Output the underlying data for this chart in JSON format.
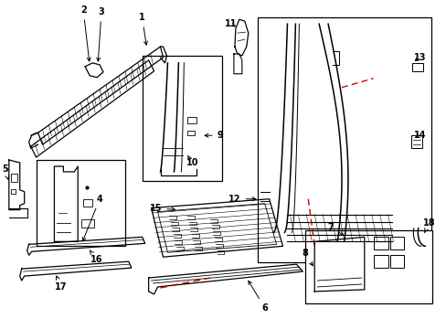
{
  "background_color": "#ffffff",
  "line_color": "#000000",
  "red_dash_color": "#cc0000",
  "label_positions": {
    "1": [
      148,
      22,
      155,
      14
    ],
    "2": [
      98,
      18,
      90,
      10
    ],
    "3": [
      115,
      20,
      108,
      12
    ],
    "4": [
      108,
      210,
      108,
      218
    ],
    "5": [
      12,
      185,
      4,
      185
    ],
    "6": [
      290,
      330,
      290,
      340
    ],
    "7": [
      355,
      256,
      363,
      248
    ],
    "8": [
      343,
      278,
      335,
      278
    ],
    "9": [
      233,
      145,
      241,
      145
    ],
    "10": [
      210,
      168,
      210,
      178
    ],
    "11": [
      261,
      30,
      253,
      30
    ],
    "12": [
      265,
      218,
      257,
      218
    ],
    "13": [
      453,
      65,
      461,
      65
    ],
    "14": [
      453,
      148,
      461,
      148
    ],
    "15": [
      178,
      235,
      170,
      235
    ],
    "16": [
      120,
      278,
      120,
      286
    ],
    "17": [
      75,
      305,
      75,
      315
    ],
    "18": [
      463,
      248,
      471,
      248
    ]
  }
}
